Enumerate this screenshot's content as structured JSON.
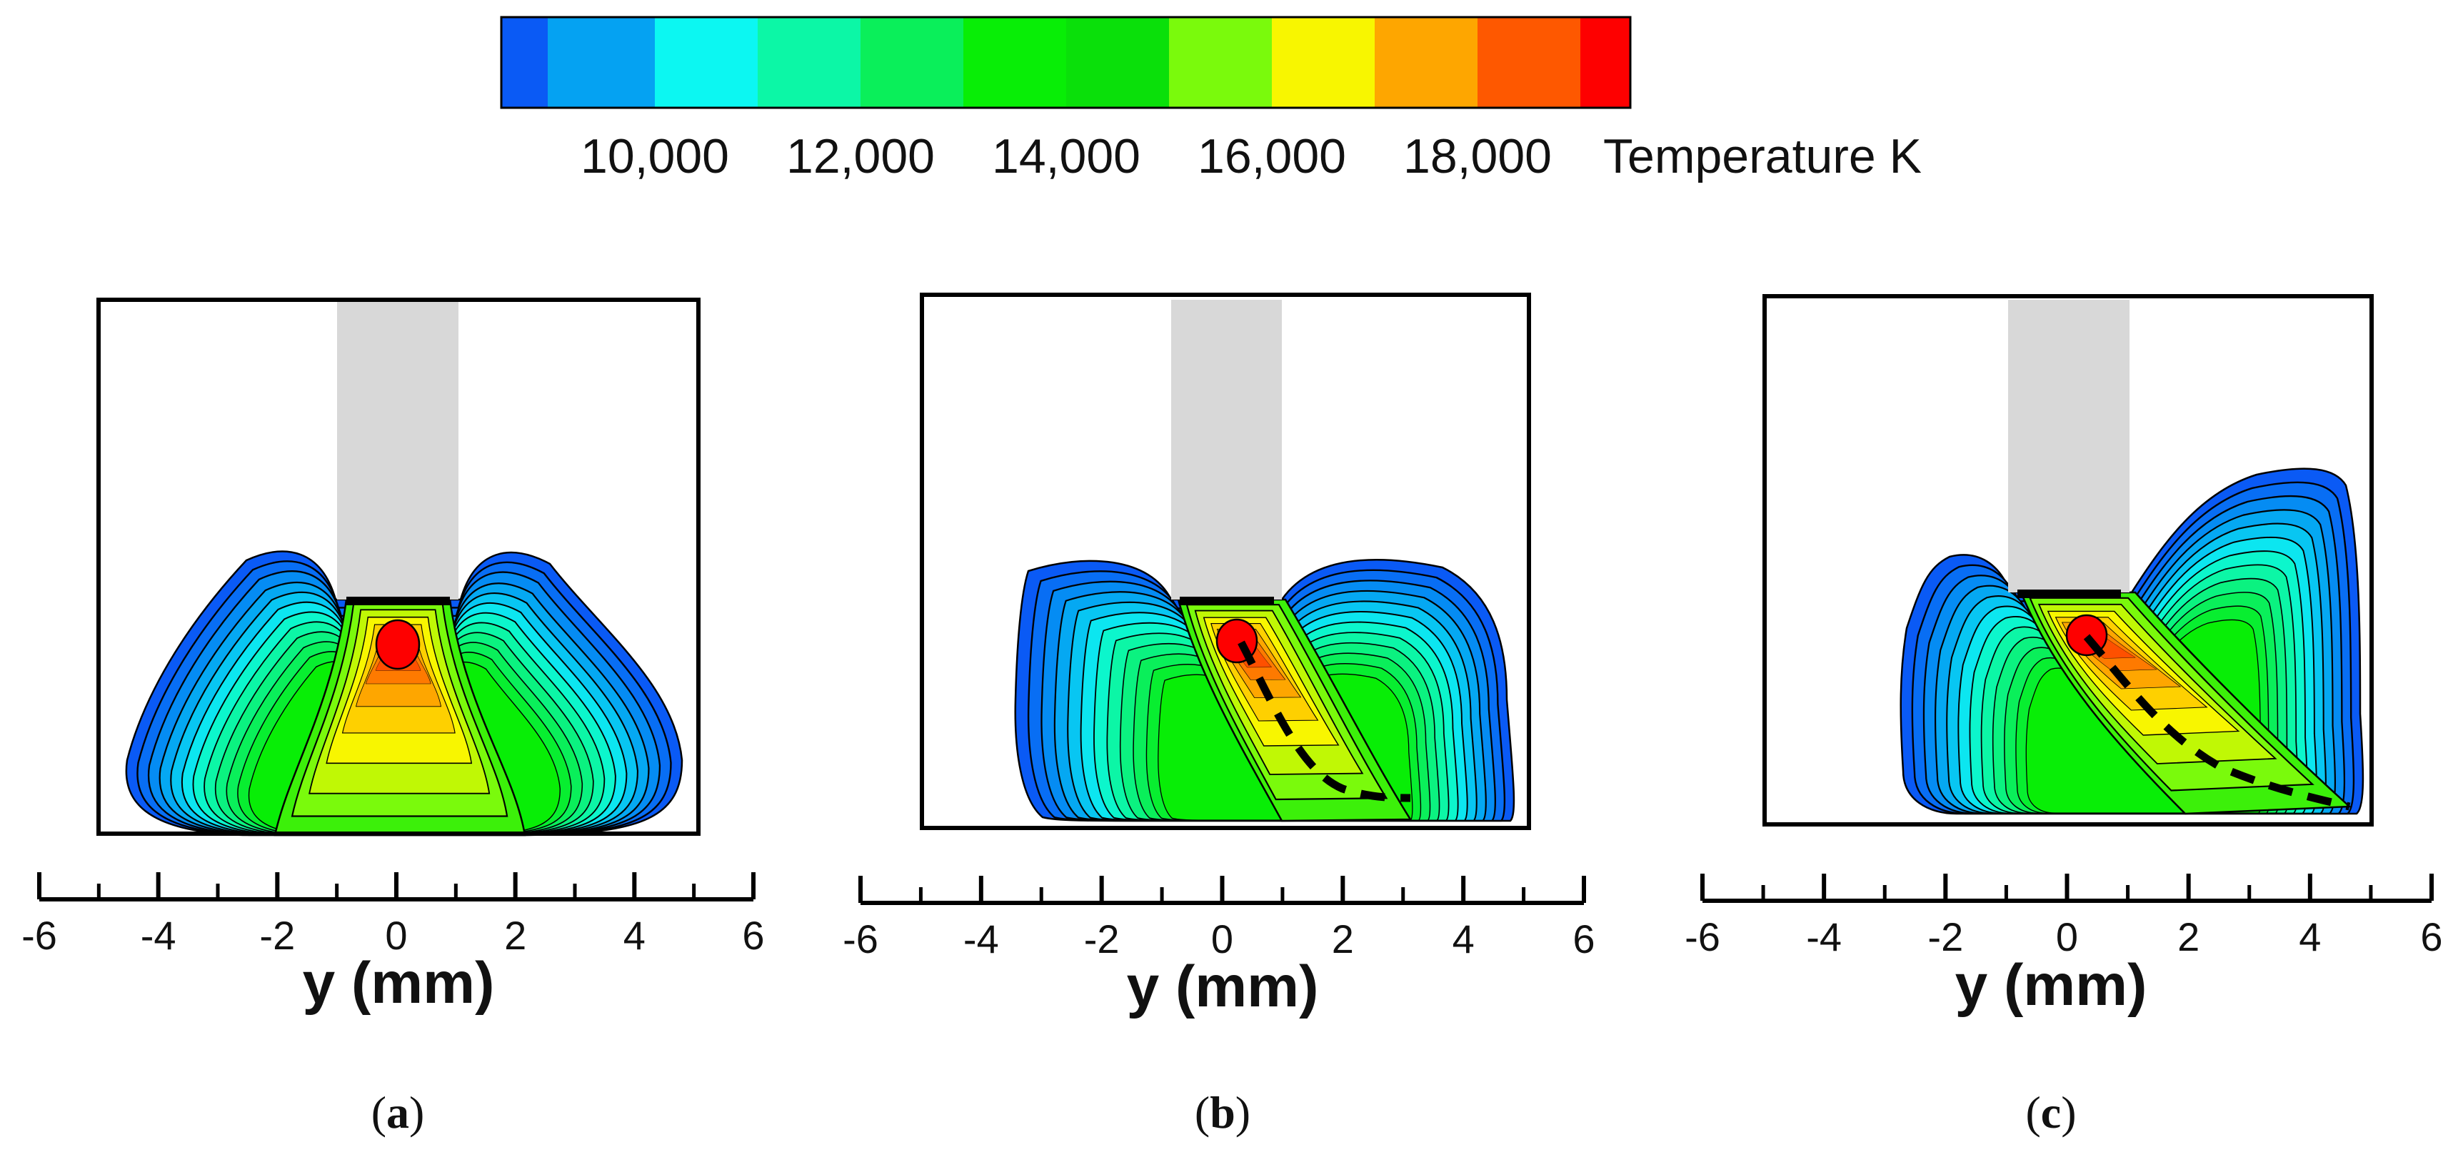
{
  "colorbar": {
    "colors": [
      "#0a5af5",
      "#05a2f2",
      "#0cf7f2",
      "#0cf7a6",
      "#0aef5a",
      "#08ee06",
      "#0ae00a",
      "#7afa0c",
      "#f8f600",
      "#fea600",
      "#fe5800",
      "#fe0000"
    ],
    "ticks": [
      "10,000",
      "12,000",
      "14,000",
      "16,000",
      "18,000"
    ],
    "label": "Temperature K"
  },
  "axis": {
    "tick_values": [
      -6,
      -4,
      -2,
      0,
      2,
      4,
      6
    ],
    "tick_labels": [
      "-6",
      "-4",
      "-2",
      "0",
      "2",
      "4",
      "6"
    ],
    "xlabel": "y (mm)"
  },
  "panels": [
    {
      "id": "a",
      "caption_open": "(",
      "caption_letter": "a",
      "caption_close": ")",
      "arc_peak_y_mm": 0.0,
      "arc_tilt": "none",
      "trajectory": false
    },
    {
      "id": "b",
      "caption_open": "(",
      "caption_letter": "b",
      "caption_close": ")",
      "arc_peak_y_mm": 0.3,
      "arc_tilt": "right",
      "trajectory": true
    },
    {
      "id": "c",
      "caption_open": "(",
      "caption_letter": "c",
      "caption_close": ")",
      "arc_peak_y_mm": 0.4,
      "arc_tilt": "right",
      "trajectory": true
    }
  ],
  "colors": {
    "electrode": "#d8d8d8",
    "frame": "#000000",
    "contour_line": "#000000",
    "trajectory": "#000000"
  }
}
